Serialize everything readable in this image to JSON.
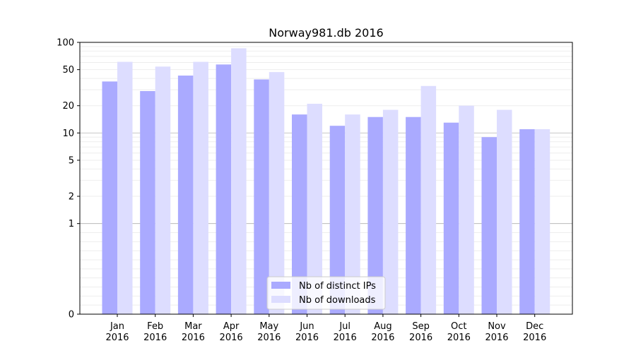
{
  "chart_data": {
    "type": "bar",
    "title": "Norway981.db 2016",
    "xlabel": "",
    "ylabel": "",
    "y_scale": "symlog",
    "ylim": [
      0,
      100
    ],
    "y_ticks": [
      0,
      1,
      2,
      5,
      10,
      20,
      50,
      100
    ],
    "categories": [
      {
        "month": "Jan",
        "year": "2016"
      },
      {
        "month": "Feb",
        "year": "2016"
      },
      {
        "month": "Mar",
        "year": "2016"
      },
      {
        "month": "Apr",
        "year": "2016"
      },
      {
        "month": "May",
        "year": "2016"
      },
      {
        "month": "Jun",
        "year": "2016"
      },
      {
        "month": "Jul",
        "year": "2016"
      },
      {
        "month": "Aug",
        "year": "2016"
      },
      {
        "month": "Sep",
        "year": "2016"
      },
      {
        "month": "Oct",
        "year": "2016"
      },
      {
        "month": "Nov",
        "year": "2016"
      },
      {
        "month": "Dec",
        "year": "2016"
      }
    ],
    "series": [
      {
        "name": "Nb of distinct IPs",
        "color": "#aaaaff",
        "values": [
          37,
          29,
          43,
          57,
          39,
          16,
          12,
          15,
          15,
          13,
          9,
          11
        ]
      },
      {
        "name": "Nb of downloads",
        "color": "#ddddff",
        "values": [
          61,
          54,
          61,
          86,
          47,
          21,
          16,
          18,
          33,
          20,
          18,
          11
        ]
      }
    ],
    "grid": true,
    "legend_position": "lower-center"
  }
}
